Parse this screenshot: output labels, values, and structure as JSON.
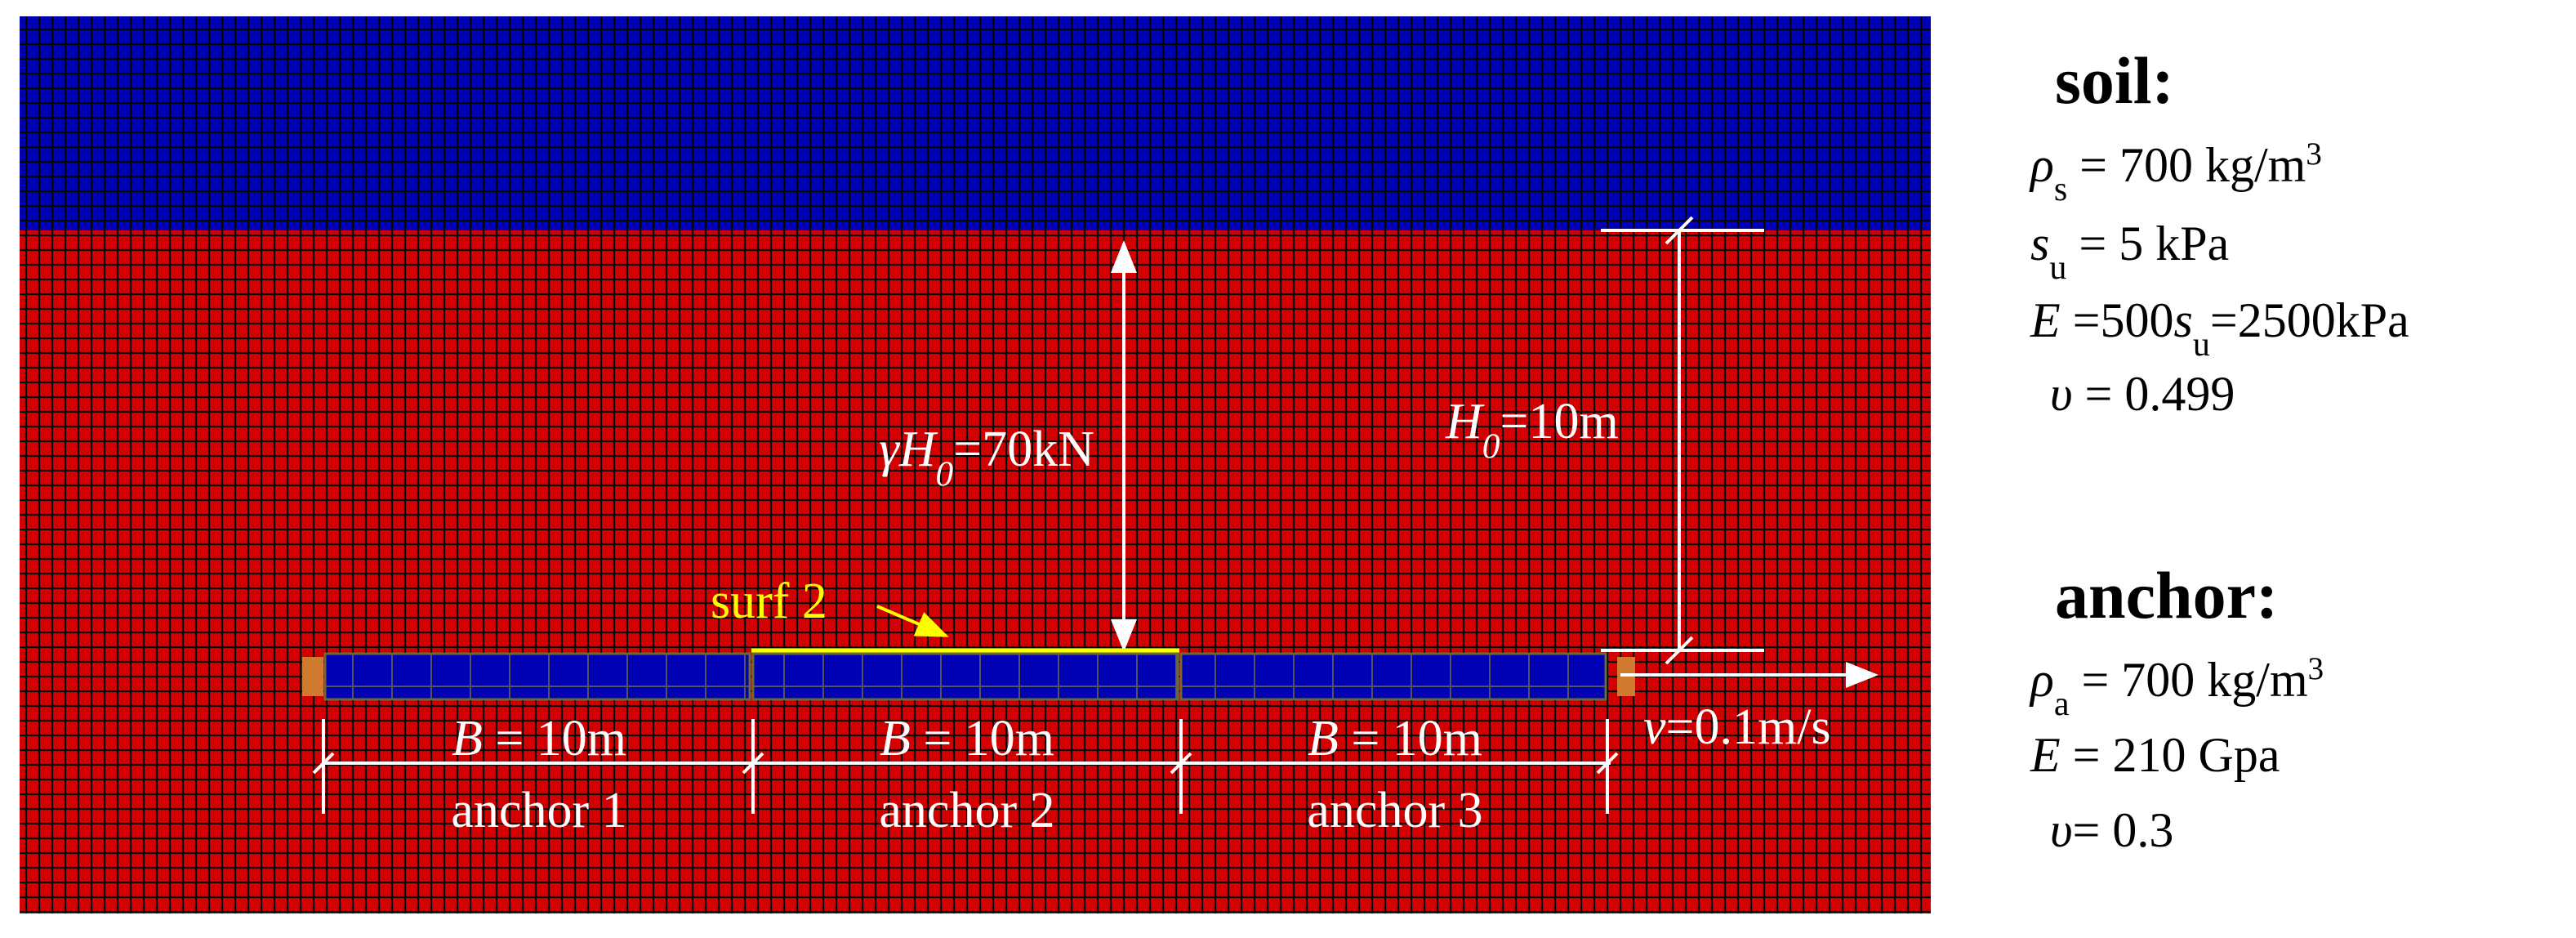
{
  "soil": {
    "title": "soil:",
    "properties": [
      [
        {
          "text": "ρ",
          "kind": "italic"
        },
        {
          "text": "s",
          "kind": "sub"
        },
        {
          "text": " = 700 kg/m",
          "kind": "normal"
        },
        {
          "text": "3",
          "kind": "sup"
        }
      ],
      [
        {
          "text": "s",
          "kind": "italic"
        },
        {
          "text": "u",
          "kind": "sub"
        },
        {
          "text": " = 5 kPa",
          "kind": "normal"
        }
      ],
      [
        {
          "text": "E",
          "kind": "italic"
        },
        {
          "text": " =500",
          "kind": "normal"
        },
        {
          "text": "s",
          "kind": "italic"
        },
        {
          "text": "u",
          "kind": "sub"
        },
        {
          "text": "=2500kPa",
          "kind": "normal"
        }
      ],
      [
        {
          "text": "υ",
          "kind": "italic"
        },
        {
          "text": " = 0.499",
          "kind": "normal"
        }
      ]
    ]
  },
  "anchor_material": {
    "title": "anchor:",
    "properties": [
      [
        {
          "text": "ρ",
          "kind": "italic"
        },
        {
          "text": "a",
          "kind": "sub"
        },
        {
          "text": " = 700 kg/m",
          "kind": "normal"
        },
        {
          "text": "3",
          "kind": "sup"
        }
      ],
      [
        {
          "text": "E",
          "kind": "italic"
        },
        {
          "text": " = 210 Gpa",
          "kind": "normal"
        }
      ],
      [
        {
          "text": "υ",
          "kind": "italic"
        },
        {
          "text": "= 0.3",
          "kind": "normal"
        }
      ]
    ]
  },
  "annotations": {
    "load": [
      {
        "text": "γH",
        "kind": "italic"
      },
      {
        "text": "0",
        "kind": "subitalic"
      },
      {
        "text": "=70kN",
        "kind": "normal"
      }
    ],
    "depth": [
      {
        "text": "H",
        "kind": "italic"
      },
      {
        "text": "0",
        "kind": "subitalic"
      },
      {
        "text": "=10m",
        "kind": "normal"
      }
    ],
    "surface": "surf 2",
    "velocity": [
      {
        "text": "v",
        "kind": "italic"
      },
      {
        "text": "=0.1m/s",
        "kind": "normal"
      }
    ]
  },
  "anchors": [
    {
      "width": [
        {
          "text": "B",
          "kind": "italic"
        },
        {
          "text": " = 10m",
          "kind": "normal"
        }
      ],
      "label": "anchor 1"
    },
    {
      "width": [
        {
          "text": "B",
          "kind": "italic"
        },
        {
          "text": " = 10m",
          "kind": "normal"
        }
      ],
      "label": "anchor 2"
    },
    {
      "width": [
        {
          "text": "B",
          "kind": "italic"
        },
        {
          "text": " = 10m",
          "kind": "normal"
        }
      ],
      "label": "anchor 3"
    }
  ]
}
